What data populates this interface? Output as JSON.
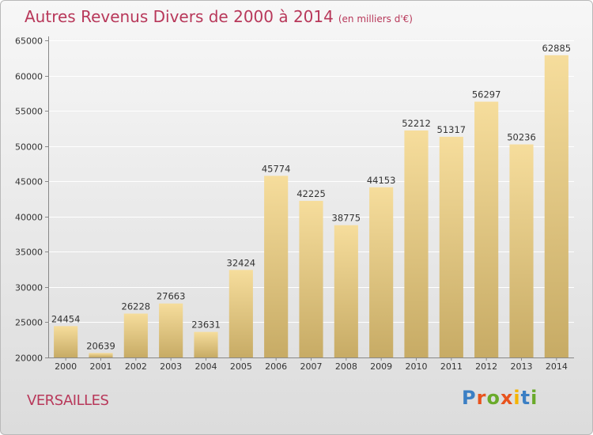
{
  "header": {
    "title": "Autres Revenus Divers de 2000 à 2014",
    "unit": "(en milliers d'€)"
  },
  "footer": {
    "city": "VERSAILLES",
    "brand": "Proxiti"
  },
  "colors": {
    "title": "#b8385a",
    "bar_top": "#f6dd9c",
    "bar_bottom": "#c7ab65",
    "logo_letters": [
      "#3b7fc4",
      "#e8531d",
      "#6aaa2a",
      "#e8531d",
      "#f4b400",
      "#3b7fc4",
      "#6aaa2a"
    ]
  },
  "chart_data": {
    "type": "bar",
    "title": "Autres Revenus Divers de 2000 à 2014",
    "xlabel": "",
    "ylabel": "",
    "categories": [
      "2000",
      "2001",
      "2002",
      "2003",
      "2004",
      "2005",
      "2006",
      "2007",
      "2008",
      "2009",
      "2010",
      "2011",
      "2012",
      "2013",
      "2014"
    ],
    "values": [
      24454,
      20639,
      26228,
      27663,
      23631,
      32424,
      45774,
      42225,
      38775,
      44153,
      52212,
      51317,
      56297,
      50236,
      62885
    ],
    "ylim": [
      20000,
      65000
    ],
    "yticks": [
      20000,
      25000,
      30000,
      35000,
      40000,
      45000,
      50000,
      55000,
      60000,
      65000
    ],
    "grid": true,
    "legend": "none"
  }
}
